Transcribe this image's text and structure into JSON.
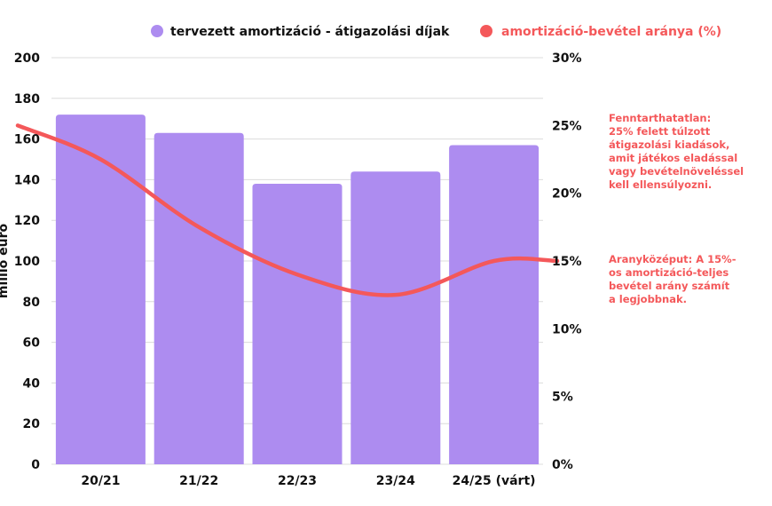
{
  "colors": {
    "bar": "#ad8cf0",
    "line": "#f4585a",
    "grid": "#dcdcdc",
    "note": "#f4585a",
    "axis_text": "#111111"
  },
  "legend": {
    "placement": "top-center",
    "bar_label": "tervezett amortizáció - átigazolási díjak",
    "line_label": "amortizáció-bevétel aránya (%)"
  },
  "notes": [
    {
      "text": "Fenntarthatatlan:\n25% felett túlzott\nátigazolási kiadások,\namit játékos eladással\nvagy bevételnöveléssel\nkell ellensúlyozni."
    },
    {
      "text": "Aranyközéput: A 15%-\nos amortizáció-teljes\nbevétel arány számít\na legjobbnak."
    }
  ],
  "chart_data": {
    "type": "bar",
    "categories": [
      "20/21",
      "21/22",
      "22/23",
      "23/24",
      "24/25 (várt)"
    ],
    "ylabel": "millió euró",
    "ylim": [
      0,
      200
    ],
    "yticks": [
      "0",
      "20",
      "40",
      "60",
      "80",
      "100",
      "120",
      "140",
      "160",
      "180",
      "200"
    ],
    "y2lim": [
      0,
      30
    ],
    "y2ticks": [
      "0%",
      "5%",
      "10%",
      "15%",
      "20%",
      "25%",
      "30%"
    ],
    "grid": true,
    "series": [
      {
        "name": "tervezett amortizáció - átigazolási díjak",
        "type": "bar",
        "axis": "left",
        "values": [
          172,
          163,
          138,
          144,
          157
        ]
      },
      {
        "name": "amortizáció-bevétel aránya (%)",
        "type": "line",
        "axis": "right",
        "smooth": true,
        "values": [
          22.5,
          17.5,
          14.0,
          12.5,
          15.0
        ],
        "edge_values": [
          25.0,
          15.0
        ]
      }
    ]
  }
}
